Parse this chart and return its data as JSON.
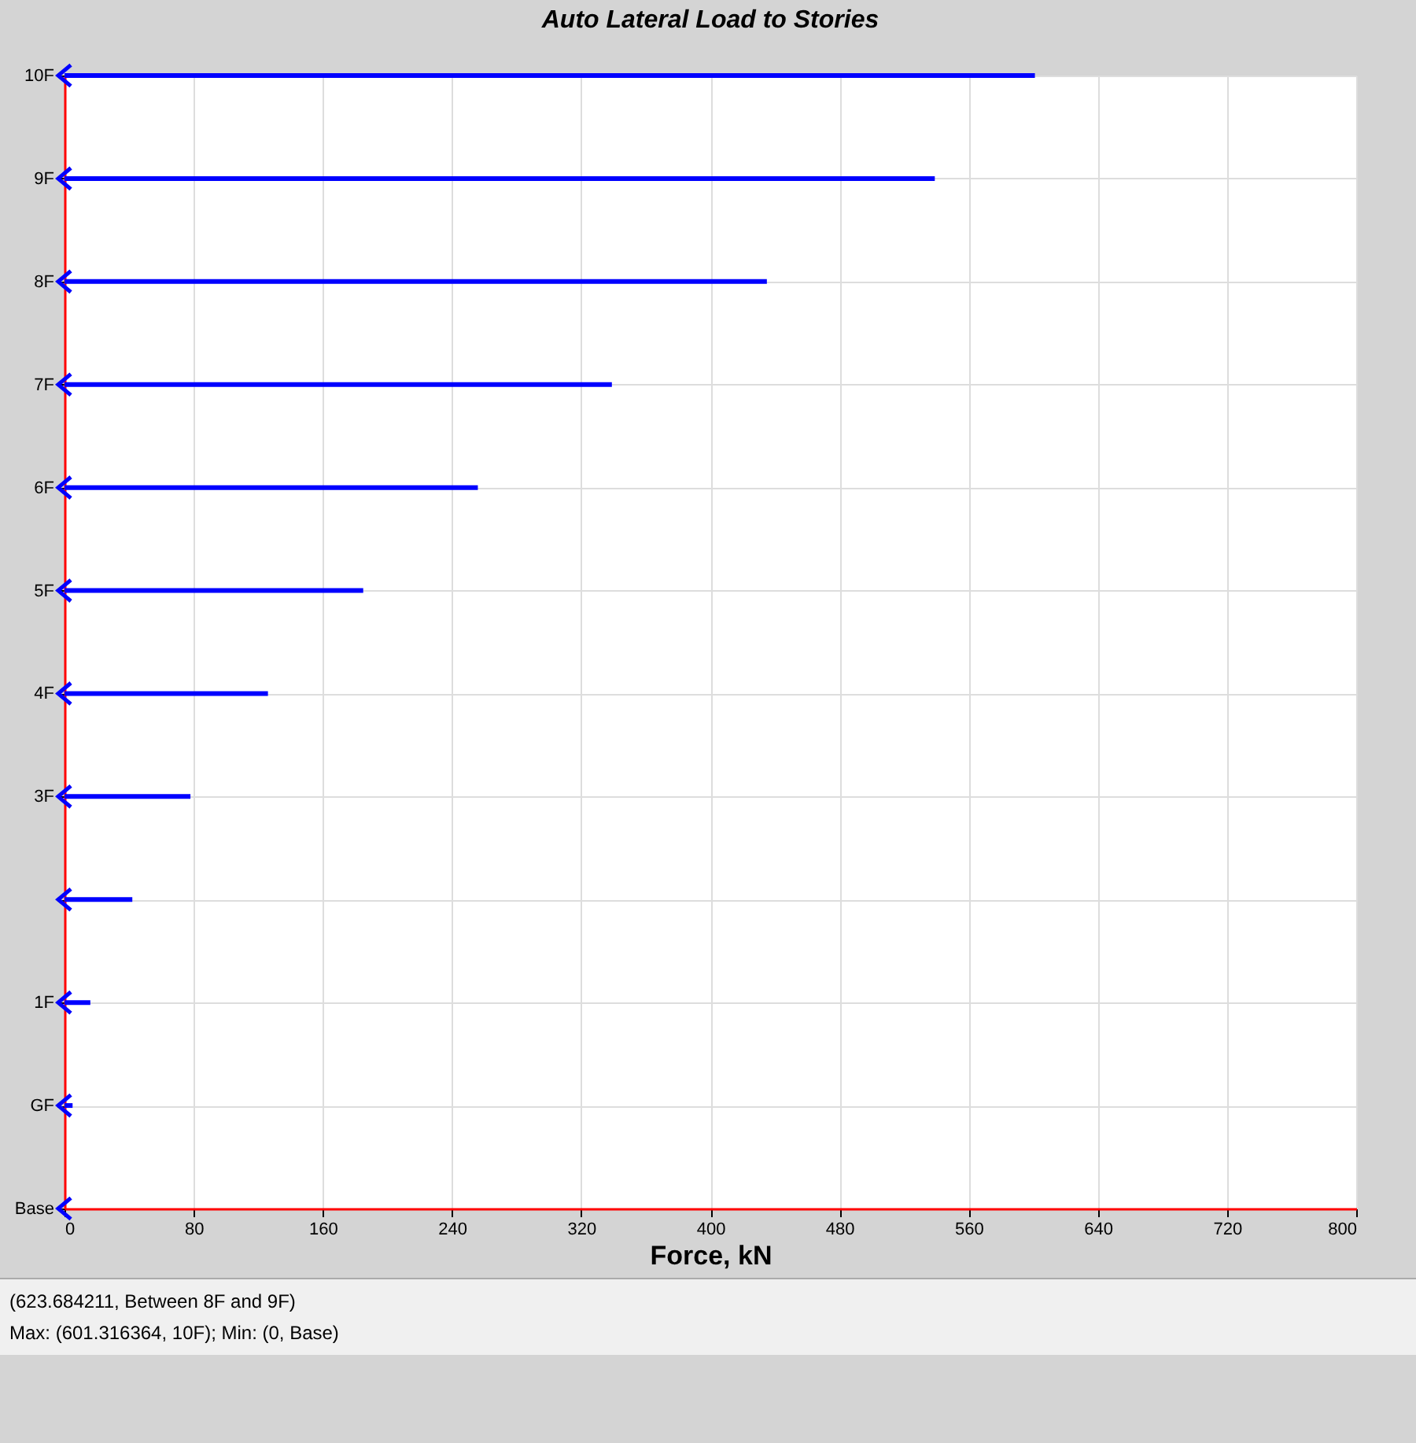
{
  "chart_data": {
    "type": "bar",
    "orientation": "horizontal",
    "title": "Auto Lateral Load to Stories",
    "xlabel": "Force, kN",
    "categories": [
      "10F",
      "9F",
      "8F",
      "7F",
      "6F",
      "5F",
      "4F",
      "3F",
      null,
      "1F",
      "GF",
      "Base"
    ],
    "values": [
      601,
      539,
      435,
      339,
      256,
      185,
      126,
      78,
      42,
      16,
      5,
      0
    ],
    "color": "#0000ff",
    "xlim": [
      0,
      800
    ],
    "xticks": [
      0,
      80,
      160,
      240,
      320,
      400,
      480,
      560,
      640,
      720,
      800
    ],
    "grid": true,
    "annotations": [
      "(623.684211, Between 8F and 9F)",
      "Max: (601.316364, 10F);   Min: (0, Base)"
    ]
  }
}
